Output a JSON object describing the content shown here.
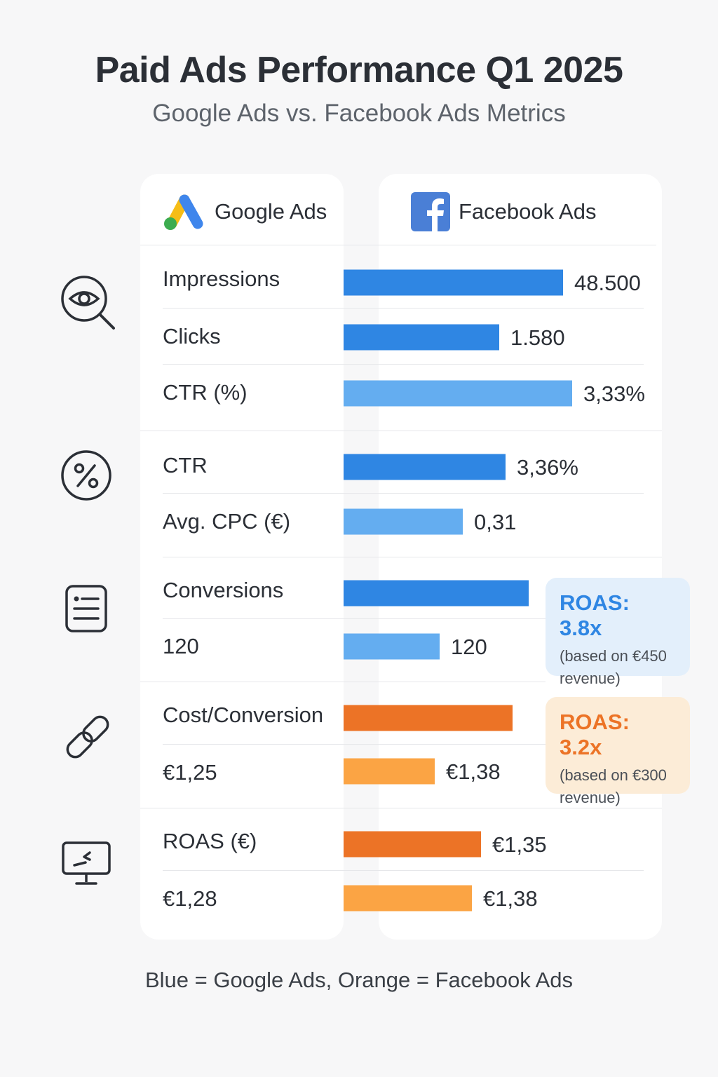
{
  "title": "Paid Ads Performance Q1 2025",
  "subtitle": "Google Ads vs. Facebook Ads Metrics",
  "headers": {
    "google": "Google Ads",
    "facebook": "Facebook Ads"
  },
  "icons": [
    "eye-search-icon",
    "percent-icon",
    "document-list-icon",
    "link-icon",
    "monitor-icon"
  ],
  "colors": {
    "blue_dark": "#2f86e3",
    "blue_light": "#64adf0",
    "orange_dark": "#ec7326",
    "orange_light": "#fba444"
  },
  "callouts": [
    {
      "title": "ROAS: 3.8x",
      "note": "(based on €450 revenue)"
    },
    {
      "title": "ROAS: 3.2x",
      "note": "(based on €300 revenue)"
    }
  ],
  "legend": "Blue = Google Ads, Orange = Facebook Ads",
  "chart_data": {
    "type": "bar",
    "title": "Paid Ads Performance Q1 2025",
    "subtitle": "Google Ads vs. Facebook Ads Metrics",
    "orientation": "horizontal",
    "rows": [
      {
        "label": "Impressions",
        "value_label": "48.500",
        "value": 48500,
        "relative": 0.96,
        "color": "blue_dark"
      },
      {
        "label": "Clicks",
        "value_label": "1.580",
        "value": 1580,
        "relative": 0.68,
        "color": "blue_dark"
      },
      {
        "label": "CTR (%)",
        "value_label": "3,33%",
        "value": 3.33,
        "relative": 1.0,
        "color": "blue_light"
      },
      {
        "label": "CTR",
        "value_label": "3,36%",
        "value": 3.36,
        "relative": 0.71,
        "color": "blue_dark"
      },
      {
        "label": "Avg. CPC (€)",
        "value_label": "0,31",
        "value": 0.31,
        "relative": 0.52,
        "color": "blue_light"
      },
      {
        "label": "Conversions",
        "value_label": "",
        "value": null,
        "relative": 0.81,
        "color": "blue_dark"
      },
      {
        "label": "120",
        "value_label": "120",
        "value": 120,
        "relative": 0.42,
        "color": "blue_light"
      },
      {
        "label": "Cost/Conversion",
        "value_label": "",
        "value": null,
        "relative": 0.74,
        "color": "orange_dark"
      },
      {
        "label": "€1,25",
        "value_label": "€1,38",
        "value": 1.38,
        "relative": 0.4,
        "color": "orange_light"
      },
      {
        "label": "ROAS (€)",
        "value_label": "€1,35",
        "value": 1.35,
        "relative": 0.6,
        "color": "orange_dark"
      },
      {
        "label": "€1,28",
        "value_label": "€1,38",
        "value": 1.38,
        "relative": 0.56,
        "color": "orange_light"
      }
    ]
  }
}
